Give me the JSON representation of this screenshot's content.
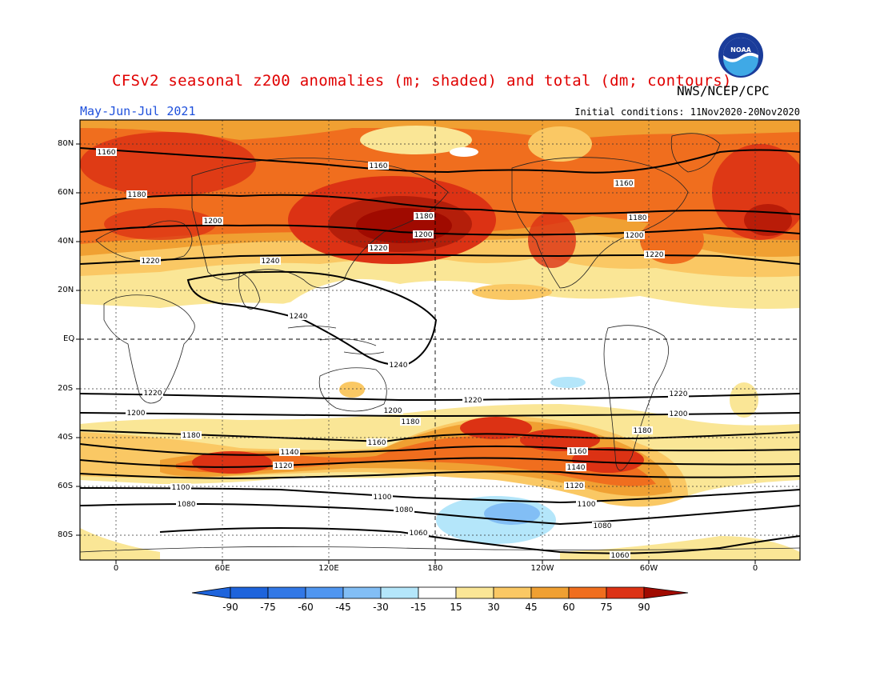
{
  "header": {
    "title": "CFSv2 seasonal z200 anomalies (m; shaded) and total (dm; contours)",
    "agency": "NWS/NCEP/CPC",
    "logo_text": "NOAA",
    "period": "May-Jun-Jul 2021",
    "initial_conditions": "Initial conditions: 11Nov2020-20Nov2020"
  },
  "map": {
    "lat_labels": [
      "80N",
      "60N",
      "40N",
      "20N",
      "EQ",
      "20S",
      "40S",
      "60S",
      "80S"
    ],
    "lon_labels": [
      "0",
      "60E",
      "120E",
      "180",
      "120W",
      "60W",
      "0"
    ],
    "contour_labels": [
      "1160",
      "1180",
      "1200",
      "1220",
      "1240",
      "1100",
      "1080",
      "1060",
      "1120",
      "1140"
    ]
  },
  "colorbar": {
    "labels": [
      "-90",
      "-75",
      "-60",
      "-45",
      "-30",
      "-15",
      "15",
      "30",
      "45",
      "60",
      "75",
      "90"
    ],
    "colors": [
      "#1e64dc",
      "#3278e6",
      "#5096f0",
      "#82bef5",
      "#b4e6fa",
      "#ffffff",
      "#fae696",
      "#fac864",
      "#f0a032",
      "#f06e1e",
      "#dc3214",
      "#a00a00"
    ]
  },
  "palette": {
    "light_yellow": "#fae696",
    "yellow_orange": "#fac864",
    "orange": "#f0a032",
    "dark_orange": "#f06e1e",
    "red": "#dc3214",
    "dark_red": "#a00a00",
    "light_blue": "#b4e6fa",
    "blue": "#82bef5"
  }
}
